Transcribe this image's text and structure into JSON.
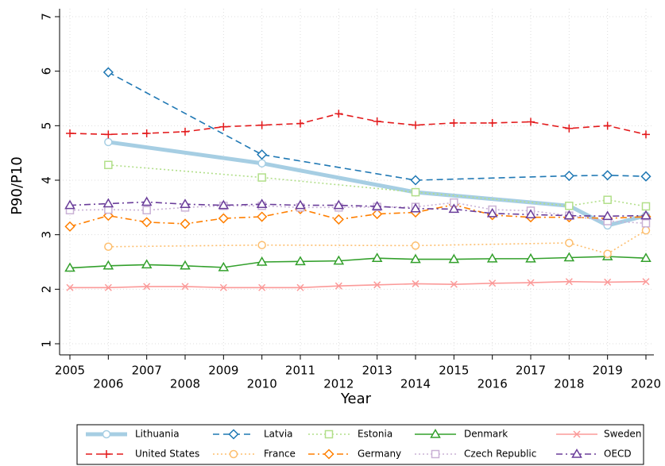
{
  "chart_data": {
    "type": "line",
    "x_label": "Year",
    "y_label": "P90/P10",
    "xlim": [
      2005,
      2020
    ],
    "xticks": [
      2005,
      2006,
      2007,
      2008,
      2009,
      2010,
      2011,
      2012,
      2013,
      2014,
      2015,
      2016,
      2017,
      2018,
      2019,
      2020
    ],
    "ylim": [
      1,
      7
    ],
    "yticks": [
      1,
      2,
      3,
      4,
      5,
      6,
      7
    ],
    "grid": true,
    "legend": "bottom",
    "series": [
      {
        "name": "Lithuania",
        "color": "#a6cee3",
        "marker": "circle",
        "dash": "solid",
        "width": "thick",
        "x": [
          2006,
          2010,
          2014,
          2018,
          2019,
          2020
        ],
        "values": [
          4.7,
          4.31,
          3.78,
          3.53,
          3.17,
          3.35
        ]
      },
      {
        "name": "Latvia",
        "color": "#1f78b4",
        "marker": "diamond",
        "dash": "dashed",
        "x": [
          2006,
          2010,
          2014,
          2018,
          2019,
          2020
        ],
        "values": [
          5.98,
          4.47,
          4.0,
          4.08,
          4.09,
          4.07
        ]
      },
      {
        "name": "Estonia",
        "color": "#b2df8a",
        "marker": "square",
        "dash": "dotted",
        "x": [
          2006,
          2010,
          2014,
          2018,
          2019,
          2020
        ],
        "values": [
          4.28,
          4.05,
          3.78,
          3.53,
          3.64,
          3.52
        ]
      },
      {
        "name": "Denmark",
        "color": "#33a02c",
        "marker": "triangle",
        "dash": "solid",
        "x": [
          2005,
          2006,
          2007,
          2008,
          2009,
          2010,
          2011,
          2012,
          2013,
          2014,
          2015,
          2016,
          2017,
          2018,
          2019,
          2020
        ],
        "values": [
          2.39,
          2.43,
          2.45,
          2.43,
          2.4,
          2.5,
          2.51,
          2.52,
          2.57,
          2.55,
          2.55,
          2.56,
          2.56,
          2.58,
          2.6,
          2.57
        ]
      },
      {
        "name": "Sweden",
        "color": "#fb9a99",
        "marker": "x",
        "dash": "solid",
        "x": [
          2005,
          2006,
          2007,
          2008,
          2009,
          2010,
          2011,
          2012,
          2013,
          2014,
          2015,
          2016,
          2017,
          2018,
          2019,
          2020
        ],
        "values": [
          2.03,
          2.03,
          2.05,
          2.05,
          2.03,
          2.03,
          2.03,
          2.06,
          2.08,
          2.1,
          2.09,
          2.11,
          2.12,
          2.14,
          2.13,
          2.14
        ]
      },
      {
        "name": "United States",
        "color": "#e31a1c",
        "marker": "plus",
        "dash": "dashed",
        "x": [
          2005,
          2006,
          2007,
          2008,
          2009,
          2010,
          2011,
          2012,
          2013,
          2014,
          2015,
          2016,
          2017,
          2018,
          2019,
          2020
        ],
        "values": [
          4.86,
          4.84,
          4.86,
          4.89,
          4.98,
          5.01,
          5.04,
          5.22,
          5.08,
          5.01,
          5.05,
          5.05,
          5.07,
          4.95,
          5.0,
          4.84
        ]
      },
      {
        "name": "France",
        "color": "#fdbf6f",
        "marker": "circle",
        "dash": "dotted",
        "x": [
          2006,
          2010,
          2014,
          2018,
          2019,
          2020
        ],
        "values": [
          2.78,
          2.81,
          2.8,
          2.85,
          2.65,
          3.08
        ]
      },
      {
        "name": "Germany",
        "color": "#ff7f00",
        "marker": "diamond",
        "dash": "dashdot",
        "x": [
          2005,
          2006,
          2007,
          2008,
          2009,
          2010,
          2011,
          2012,
          2013,
          2014,
          2015,
          2016,
          2017,
          2018,
          2019,
          2020
        ],
        "values": [
          3.15,
          3.35,
          3.23,
          3.2,
          3.3,
          3.33,
          3.47,
          3.28,
          3.38,
          3.41,
          3.55,
          3.36,
          3.32,
          3.32,
          3.3,
          3.33
        ]
      },
      {
        "name": "Czech Republic",
        "color": "#cab2d6",
        "marker": "square",
        "dash": "dotted",
        "x": [
          2005,
          2006,
          2007,
          2008,
          2009,
          2010,
          2011,
          2012,
          2013,
          2014,
          2015,
          2016,
          2017,
          2018,
          2019,
          2020
        ],
        "values": [
          3.45,
          3.46,
          3.45,
          3.5,
          3.53,
          3.53,
          3.5,
          3.5,
          3.51,
          3.51,
          3.59,
          3.46,
          3.44,
          3.35,
          3.25,
          3.21
        ]
      },
      {
        "name": "OECD",
        "color": "#6a3d9a",
        "marker": "triangle",
        "dash": "dashdot",
        "x": [
          2005,
          2006,
          2007,
          2008,
          2009,
          2010,
          2011,
          2012,
          2013,
          2014,
          2015,
          2016,
          2017,
          2018,
          2019,
          2020
        ],
        "values": [
          3.54,
          3.57,
          3.6,
          3.56,
          3.54,
          3.56,
          3.54,
          3.54,
          3.52,
          3.48,
          3.47,
          3.39,
          3.37,
          3.35,
          3.34,
          3.35
        ]
      }
    ]
  }
}
